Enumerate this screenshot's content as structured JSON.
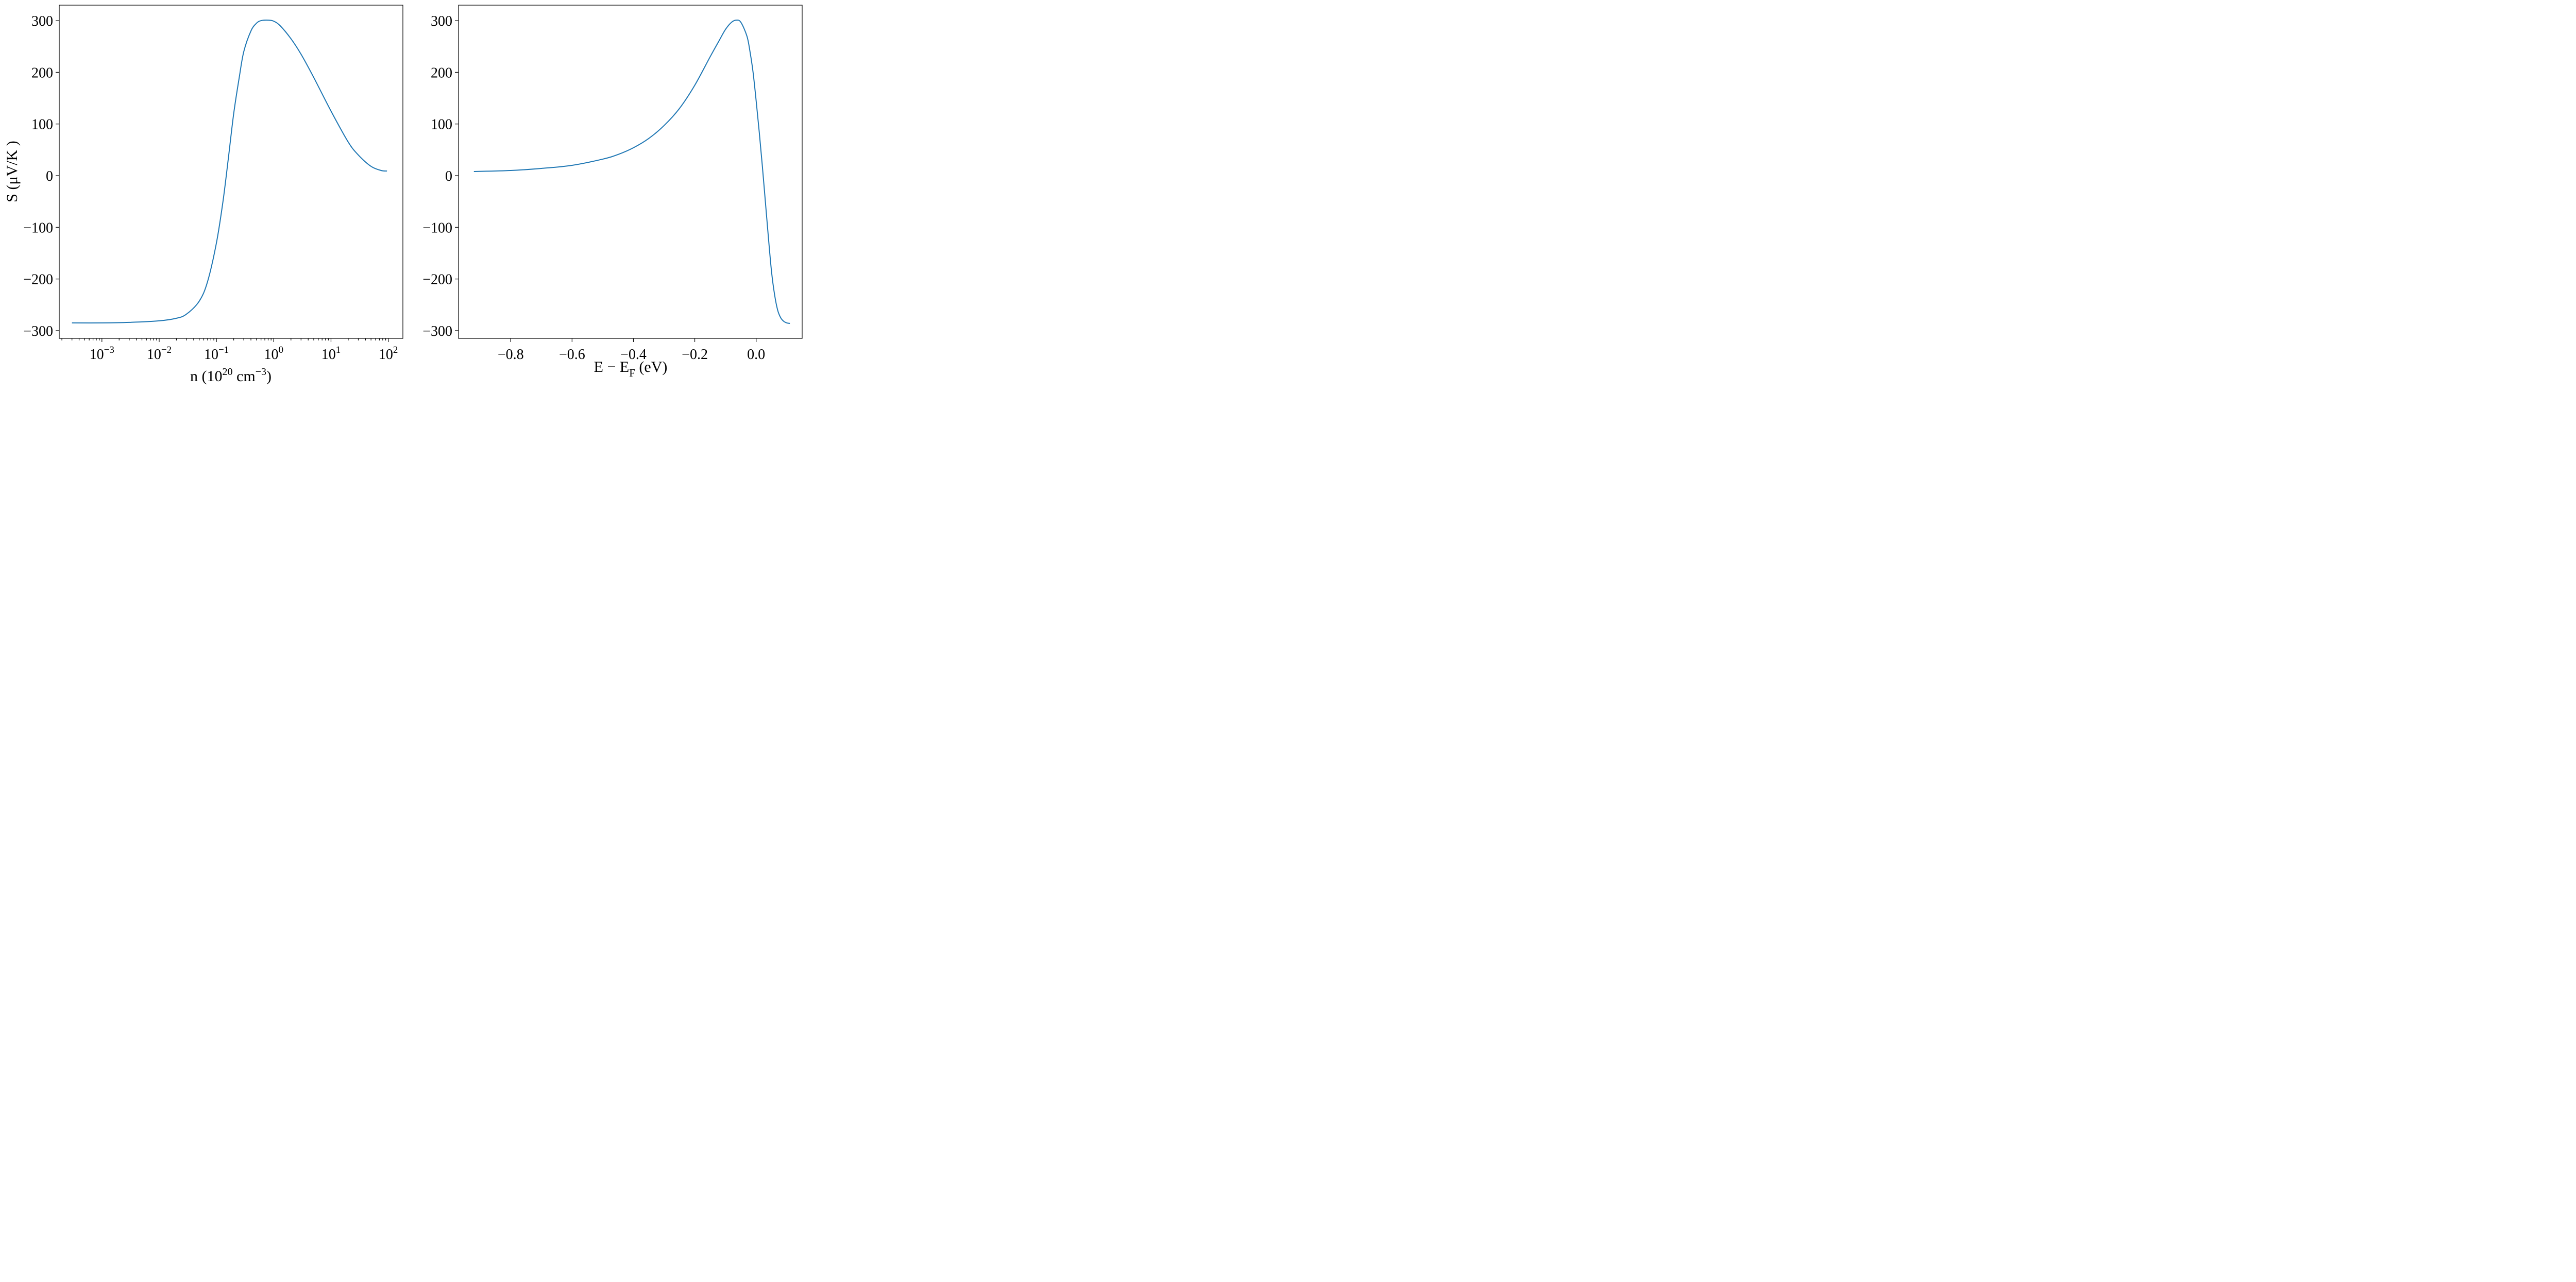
{
  "chart_data": [
    {
      "type": "line",
      "xscale": "log",
      "xlim": [
        0.00018,
        180
      ],
      "ylim": [
        -315,
        330
      ],
      "xticks": [
        0.001,
        0.01,
        0.1,
        1,
        10,
        100
      ],
      "xticklabels": [
        {
          "base": "10",
          "exp": "−3"
        },
        {
          "base": "10",
          "exp": "−2"
        },
        {
          "base": "10",
          "exp": "−1"
        },
        {
          "base": "10",
          "exp": "0"
        },
        {
          "base": "10",
          "exp": "1"
        },
        {
          "base": "10",
          "exp": "2"
        }
      ],
      "yticks": [
        -300,
        -200,
        -100,
        0,
        100,
        200,
        300
      ],
      "yticklabels": [
        "−300",
        "−200",
        "−100",
        "0",
        "100",
        "200",
        "300"
      ],
      "xlabel": {
        "main": "n (10",
        "sup1": "20",
        "mid": " cm",
        "sup2": "−3",
        "end": ")"
      },
      "ylabel": "S (μV/K )",
      "grid": false,
      "series": [
        {
          "color": "#1f77b4",
          "x": [
            0.0003,
            0.001,
            0.003,
            0.01,
            0.02,
            0.03,
            0.05,
            0.07,
            0.1,
            0.13,
            0.16,
            0.2,
            0.25,
            0.3,
            0.4,
            0.5,
            0.6,
            0.8,
            1.0,
            1.3,
            2.0,
            3.0,
            5.0,
            10.0,
            20.0,
            30.0,
            50.0,
            75.0,
            95.0
          ],
          "y": [
            -285,
            -285,
            -284,
            -281,
            -276,
            -268,
            -243,
            -205,
            -130,
            -50,
            30,
            120,
            190,
            240,
            280,
            295,
            300,
            301,
            299,
            290,
            265,
            235,
            190,
            125,
            65,
            40,
            18,
            10,
            9
          ]
        }
      ]
    },
    {
      "type": "line",
      "xlim": [
        -0.97,
        0.15
      ],
      "ylim": [
        -315,
        330
      ],
      "xticks": [
        -0.8,
        -0.6,
        -0.4,
        -0.2,
        0.0
      ],
      "xticklabels": [
        "−0.8",
        "−0.6",
        "−0.4",
        "−0.2",
        "0.0"
      ],
      "yticks": [
        -300,
        -200,
        -100,
        0,
        100,
        200,
        300
      ],
      "yticklabels": [
        "−300",
        "−200",
        "−100",
        "0",
        "100",
        "200",
        "300"
      ],
      "xlabel": {
        "main": "E − E",
        "sub": "F",
        "end": " (eV)"
      },
      "ylabel": "",
      "grid": false,
      "series": [
        {
          "color": "#1f77b4",
          "x": [
            -0.92,
            -0.8,
            -0.7,
            -0.6,
            -0.5,
            -0.45,
            -0.4,
            -0.35,
            -0.3,
            -0.25,
            -0.2,
            -0.15,
            -0.12,
            -0.1,
            -0.08,
            -0.065,
            -0.05,
            -0.03,
            -0.02,
            -0.01,
            0.0,
            0.01,
            0.02,
            0.03,
            0.04,
            0.05,
            0.06,
            0.07,
            0.08,
            0.09,
            0.1,
            0.11
          ],
          "y": [
            8,
            10,
            14,
            20,
            32,
            41,
            54,
            72,
            97,
            130,
            175,
            230,
            262,
            283,
            297,
            301,
            297,
            270,
            240,
            200,
            145,
            85,
            20,
            -50,
            -120,
            -185,
            -230,
            -260,
            -275,
            -282,
            -285,
            -286
          ]
        }
      ]
    }
  ]
}
